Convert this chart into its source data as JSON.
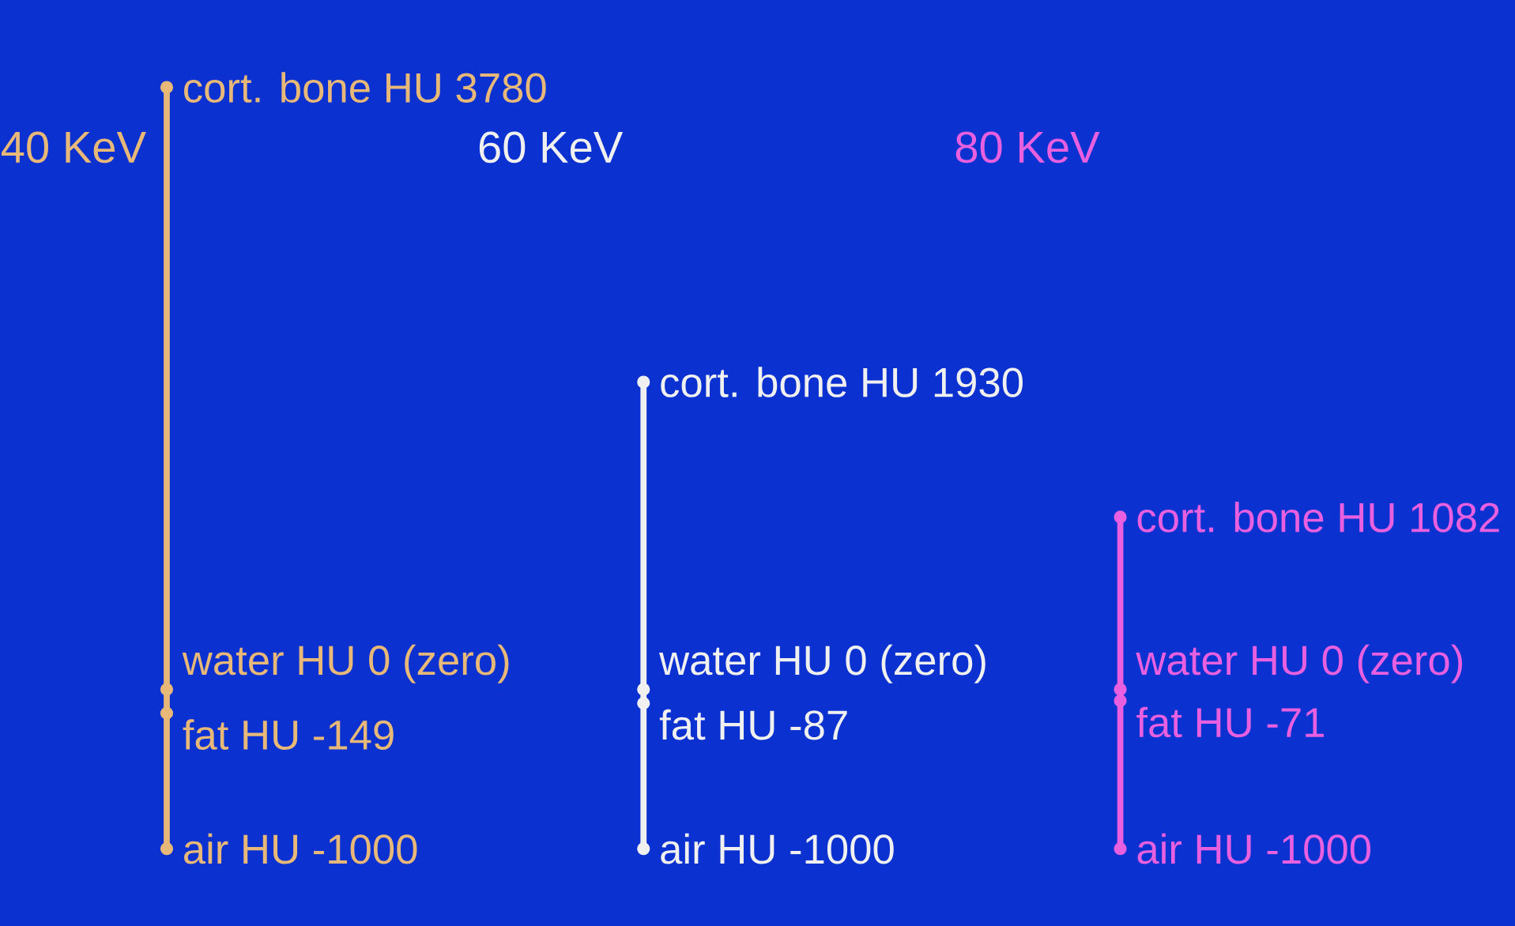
{
  "chart_data": {
    "type": "other",
    "categories": [
      "40 KeV",
      "60 KeV",
      "80 KeV"
    ],
    "series": [
      {
        "colors": [
          "#e8b878",
          "#f0f0f0",
          "#e860e0"
        ],
        "values": [
          3780,
          1930,
          1082
        ],
        "value_labels": [
          "cort. bone HU 3780",
          "cort. bone HU 1930",
          "cort. bone HU 1082"
        ]
      },
      {
        "colors": [
          "#e8b878",
          "#f0f0f0",
          "#e860e0"
        ],
        "values": [
          0,
          0,
          0
        ],
        "value_labels": [
          "water HU 0 (zero)",
          "water HU 0 (zero)",
          "water HU 0 (zero)"
        ]
      },
      {
        "colors": [
          "#e8b878",
          "#f0f0f0",
          "#e860e0"
        ],
        "values": [
          -149,
          -87,
          -71
        ],
        "value_labels": [
          "fat HU -149",
          "fat HU -87",
          "fat HU -71"
        ]
      },
      {
        "colors": [
          "#e8b878",
          "#f0f0f0",
          "#e860e0"
        ],
        "values": [
          -1000,
          -1000,
          -1000
        ],
        "value_labels": [
          "air HU -1000",
          "air HU -1000",
          "air HU -1000"
        ]
      }
    ]
  }
}
